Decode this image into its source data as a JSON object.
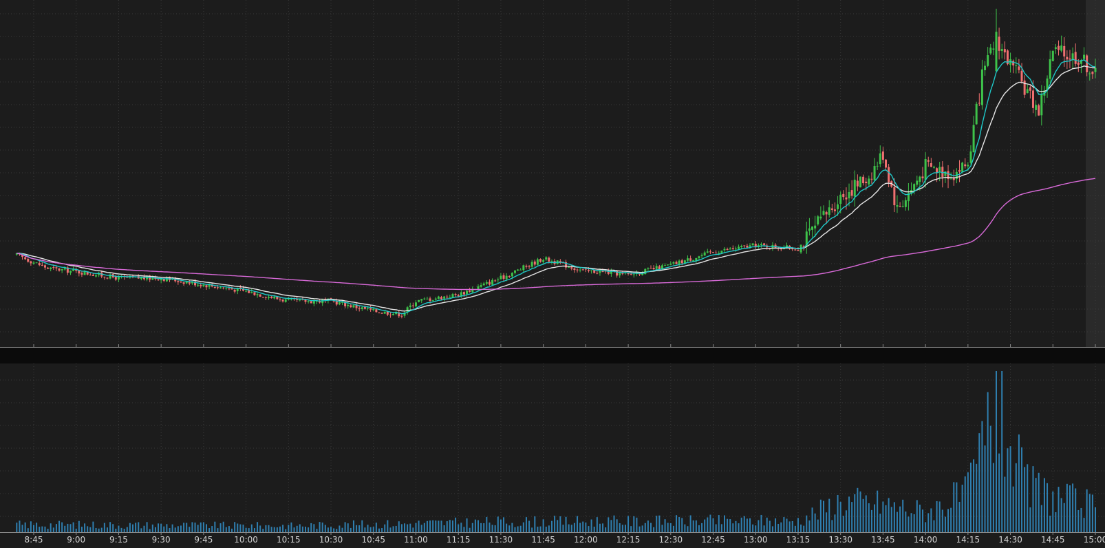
{
  "colors": {
    "background": "#1c1c1c",
    "separator": "#0b0b0b",
    "grid": "#3a3a3a",
    "axis": "#8a8a8a",
    "up_candle": "#3ec24a",
    "down_candle": "#f07070",
    "ema_fast": "#1fc8c8",
    "ema_slow": "#e6e6e6",
    "vwap": "#d96ad9",
    "volume": "#2f7fb0",
    "right_shade": "#2a2a2a"
  },
  "chart_data": [
    {
      "type": "candlestick",
      "title": "",
      "xlabel": "",
      "ylabel": "",
      "grid": true,
      "x_ticks": [
        "8:45",
        "9:00",
        "9:15",
        "9:30",
        "9:45",
        "10:00",
        "10:15",
        "10:30",
        "10:45",
        "11:00",
        "11:15",
        "11:30",
        "11:45",
        "12:00",
        "12:15",
        "12:30",
        "12:45",
        "13:00",
        "13:15",
        "13:30",
        "13:45",
        "14:00",
        "14:15",
        "14:30",
        "14:45",
        "15:00"
      ],
      "x_range": [
        "8:39",
        "15:00"
      ],
      "y_range": [
        0,
        100
      ],
      "close_path": [
        {
          "t": "8:39",
          "v": 24
        },
        {
          "t": "8:50",
          "v": 20
        },
        {
          "t": "9:00",
          "v": 19
        },
        {
          "t": "9:15",
          "v": 17
        },
        {
          "t": "9:30",
          "v": 17
        },
        {
          "t": "9:45",
          "v": 15
        },
        {
          "t": "10:00",
          "v": 13
        },
        {
          "t": "10:15",
          "v": 10
        },
        {
          "t": "10:30",
          "v": 10
        },
        {
          "t": "10:45",
          "v": 7
        },
        {
          "t": "10:55",
          "v": 6
        },
        {
          "t": "11:00",
          "v": 10
        },
        {
          "t": "11:15",
          "v": 12
        },
        {
          "t": "11:30",
          "v": 17
        },
        {
          "t": "11:45",
          "v": 23
        },
        {
          "t": "12:00",
          "v": 19
        },
        {
          "t": "12:05",
          "v": 19
        },
        {
          "t": "12:15",
          "v": 18
        },
        {
          "t": "12:30",
          "v": 21
        },
        {
          "t": "12:45",
          "v": 25
        },
        {
          "t": "13:00",
          "v": 27
        },
        {
          "t": "13:15",
          "v": 26
        },
        {
          "t": "13:30",
          "v": 42
        },
        {
          "t": "13:40",
          "v": 48
        },
        {
          "t": "13:45",
          "v": 55
        },
        {
          "t": "13:50",
          "v": 38
        },
        {
          "t": "13:55",
          "v": 44
        },
        {
          "t": "14:00",
          "v": 51
        },
        {
          "t": "14:10",
          "v": 49
        },
        {
          "t": "14:15",
          "v": 52
        },
        {
          "t": "14:20",
          "v": 78
        },
        {
          "t": "14:25",
          "v": 90
        },
        {
          "t": "14:30",
          "v": 82
        },
        {
          "t": "14:40",
          "v": 68
        },
        {
          "t": "14:45",
          "v": 86
        },
        {
          "t": "14:55",
          "v": 84
        },
        {
          "t": "15:00",
          "v": 79
        }
      ],
      "series": [
        {
          "values": "ema_fast"
        },
        {
          "values": "ema_slow"
        },
        {
          "values": "vwap"
        }
      ]
    },
    {
      "type": "bar",
      "title": "",
      "xlabel": "",
      "ylabel": "",
      "grid": true,
      "x_ticks": [
        "8:45",
        "9:00",
        "9:15",
        "9:30",
        "9:45",
        "10:00",
        "10:15",
        "10:30",
        "10:45",
        "11:00",
        "11:15",
        "11:30",
        "11:45",
        "12:00",
        "12:15",
        "12:30",
        "12:45",
        "13:00",
        "13:15",
        "13:30",
        "13:45",
        "14:00",
        "14:15",
        "14:30",
        "14:45",
        "15:00"
      ],
      "y_range": [
        0,
        100
      ],
      "volume_profile": [
        {
          "t": "8:39",
          "v": 6
        },
        {
          "t": "10:15",
          "v": 5
        },
        {
          "t": "11:30",
          "v": 8
        },
        {
          "t": "13:15",
          "v": 9
        },
        {
          "t": "13:30",
          "v": 24
        },
        {
          "t": "13:45",
          "v": 22
        },
        {
          "t": "14:00",
          "v": 16
        },
        {
          "t": "14:15",
          "v": 30
        },
        {
          "t": "14:25",
          "v": 100
        },
        {
          "t": "14:35",
          "v": 36
        },
        {
          "t": "14:45",
          "v": 28
        },
        {
          "t": "15:00",
          "v": 20
        }
      ]
    }
  ]
}
